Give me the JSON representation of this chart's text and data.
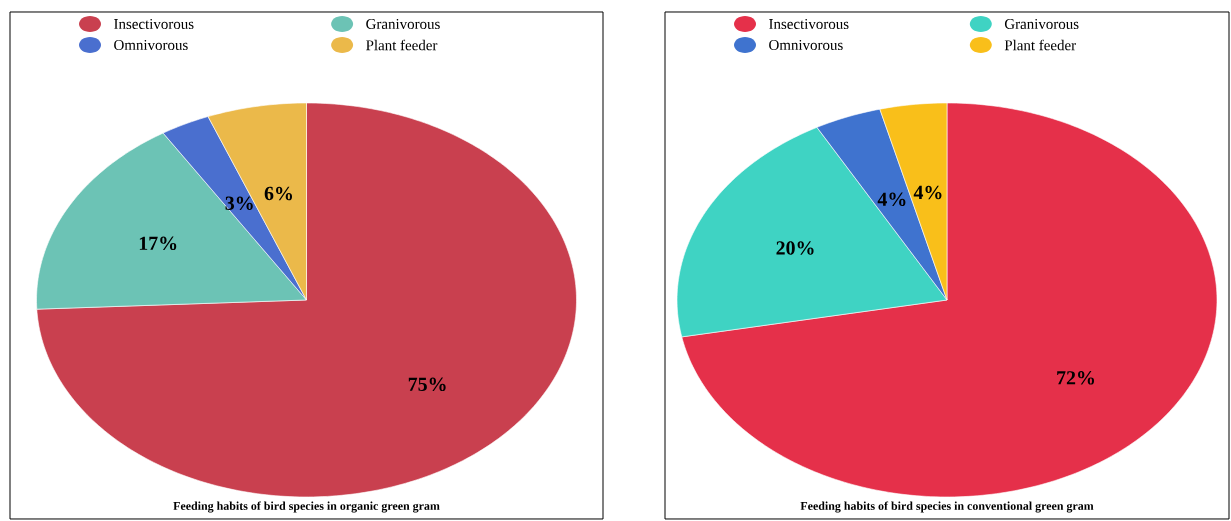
{
  "chart_data": [
    {
      "type": "pie",
      "title": "Feeding habits of bird species in organic green gram",
      "legend": "top",
      "categories": [
        "Insectivorous",
        "Granivorous",
        "Omnivorous",
        "Plant feeder"
      ],
      "values": [
        75,
        17,
        3,
        6
      ],
      "value_labels": [
        "75%",
        "17%",
        "3%",
        "6%"
      ],
      "colors": [
        "#c9404f",
        "#6cc3b5",
        "#4a6fcf",
        "#ebb94a"
      ]
    },
    {
      "type": "pie",
      "title": "Feeding habits of bird species in conventional green gram",
      "legend": "top",
      "categories": [
        "Insectivorous",
        "Granivorous",
        "Omnivorous",
        "Plant feeder"
      ],
      "values": [
        72,
        20,
        4,
        4
      ],
      "value_labels": [
        "72%",
        "20%",
        "4%",
        "4%"
      ],
      "colors": [
        "#e5304a",
        "#3fd3c3",
        "#3f73cf",
        "#f9bf1a"
      ]
    }
  ]
}
